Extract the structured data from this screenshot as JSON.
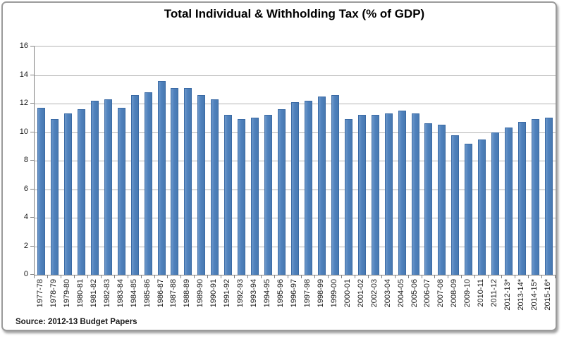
{
  "chart_data": {
    "type": "bar",
    "title": "Total Individual & Withholding Tax (% of GDP)",
    "source": "Source: 2012-13 Budget Papers",
    "categories": [
      "1977-78",
      "1978-79",
      "1979-80",
      "1980-81",
      "1981-82",
      "1982-83",
      "1983-84",
      "1984-85",
      "1985-86",
      "1986-87",
      "1987-88",
      "1988-89",
      "1989-90",
      "1990-91",
      "1991-92",
      "1992-93",
      "1993-94",
      "1994-95",
      "1995-96",
      "1996-97",
      "1997-98",
      "1998-99",
      "1999-00",
      "2000-01",
      "2001-02",
      "2002-03",
      "2003-04",
      "2004-05",
      "2005-06",
      "2006-07",
      "2007-08",
      "2008-09",
      "2009-10",
      "2010-11",
      "2011-12",
      "2012-13*",
      "2013-14*",
      "2014-15*",
      "2015-16*"
    ],
    "values": [
      11.7,
      10.9,
      11.3,
      11.6,
      12.2,
      12.3,
      11.7,
      12.6,
      12.8,
      13.6,
      13.1,
      13.1,
      12.6,
      12.3,
      11.2,
      10.9,
      11.0,
      11.2,
      11.6,
      12.1,
      12.2,
      12.5,
      12.6,
      10.9,
      11.2,
      11.2,
      11.3,
      11.5,
      11.3,
      10.6,
      10.5,
      9.8,
      9.2,
      9.5,
      10.0,
      10.3,
      10.7,
      10.9,
      11.0
    ],
    "xlabel": "",
    "ylabel": "",
    "ylim": [
      0,
      16
    ],
    "yticks": [
      16,
      14,
      12,
      10,
      8,
      6,
      4,
      2,
      0
    ],
    "grid": true,
    "legend": "none",
    "bar_color": "#4f81bd",
    "bar_border_color": "#3a6aa5",
    "gridline_color": "#b3b3b3",
    "axis_color": "#808080",
    "label_color": "#1a1a1a"
  }
}
